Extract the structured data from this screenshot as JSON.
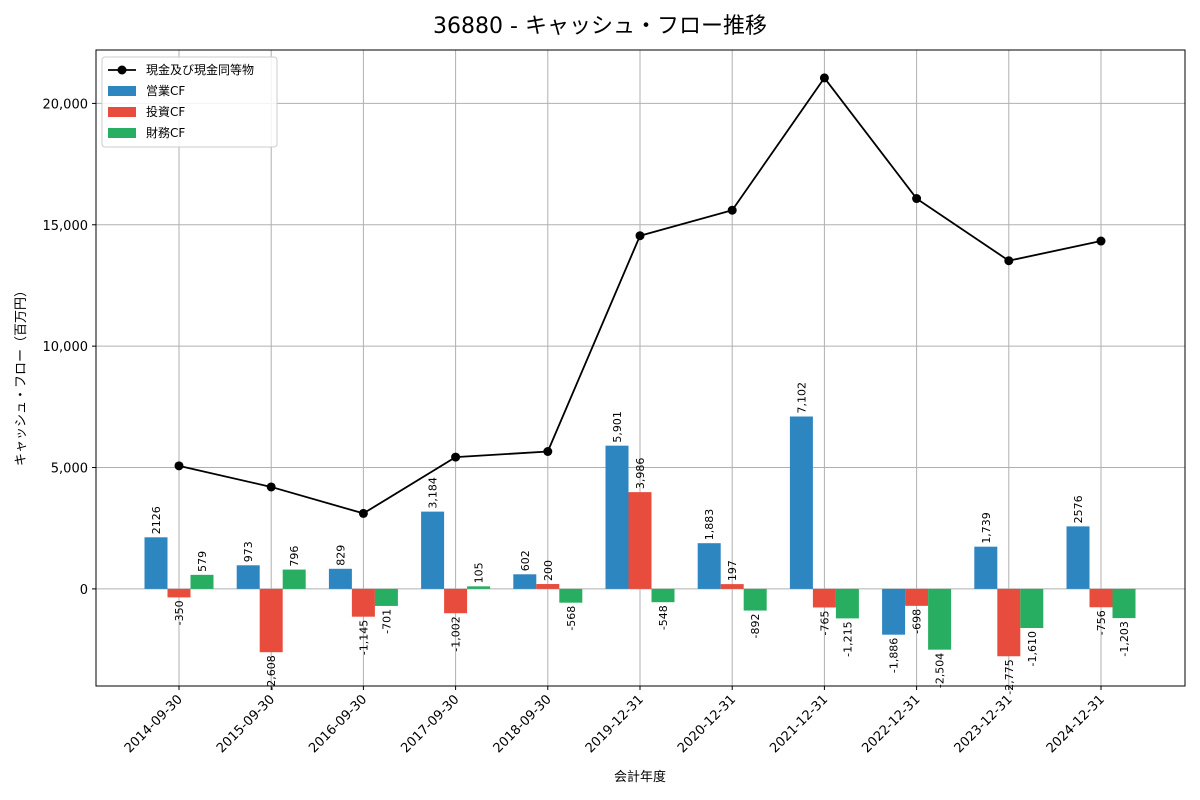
{
  "chart_data": {
    "type": "bar",
    "title": "36880 - キャッシュ・フロー推移",
    "xlabel": "会計年度",
    "ylabel": "キャッシュ・フロー（百万円）",
    "categories": [
      "2014-09-30",
      "2015-09-30",
      "2016-09-30",
      "2017-09-30",
      "2018-09-30",
      "2019-12-31",
      "2020-12-31",
      "2021-12-31",
      "2022-12-31",
      "2023-12-31",
      "2024-12-31"
    ],
    "ylim": [
      -4000,
      22200
    ],
    "yticks": [
      0,
      5000,
      10000,
      15000,
      20000
    ],
    "ytick_labels": [
      "0",
      "5,000",
      "10,000",
      "15,000",
      "20,000"
    ],
    "grid": true,
    "legend_position": "top-left",
    "series": [
      {
        "name": "営業CF",
        "kind": "bar",
        "color": "#2e86c1",
        "values": [
          2126,
          973,
          829,
          3184,
          602,
          5901,
          1883,
          7102,
          -1886,
          1739,
          2576
        ],
        "labels": [
          "2126",
          "973",
          "829",
          "3,184",
          "602",
          "5,901",
          "1,883",
          "7,102",
          "-1,886",
          "1,739",
          "2576"
        ]
      },
      {
        "name": "投資CF",
        "kind": "bar",
        "color": "#e74c3c",
        "values": [
          -350,
          -2608,
          -1145,
          -1002,
          200,
          3986,
          197,
          -765,
          -698,
          -2775,
          -756
        ],
        "labels": [
          "-350",
          "-2,608",
          "-1,145",
          "-1,002",
          "200",
          "3,986",
          "197",
          "-765",
          "-698",
          "-2,775",
          "-756"
        ]
      },
      {
        "name": "財務CF",
        "kind": "bar",
        "color": "#27ae60",
        "values": [
          579,
          796,
          -701,
          105,
          -568,
          -548,
          -892,
          -1215,
          -2504,
          -1610,
          -1203
        ],
        "labels": [
          "579",
          "796",
          "-701",
          "105",
          "-568",
          "-548",
          "-892",
          "-1,215",
          "-2,504",
          "-1,610",
          "-1,203"
        ]
      },
      {
        "name": "現金及び現金同等物",
        "kind": "line",
        "color": "#000000",
        "values": [
          5070,
          4200,
          3110,
          5430,
          5660,
          14550,
          15600,
          21050,
          16080,
          13520,
          14330
        ]
      }
    ],
    "legend_order": [
      "現金及び現金同等物",
      "営業CF",
      "投資CF",
      "財務CF"
    ]
  }
}
